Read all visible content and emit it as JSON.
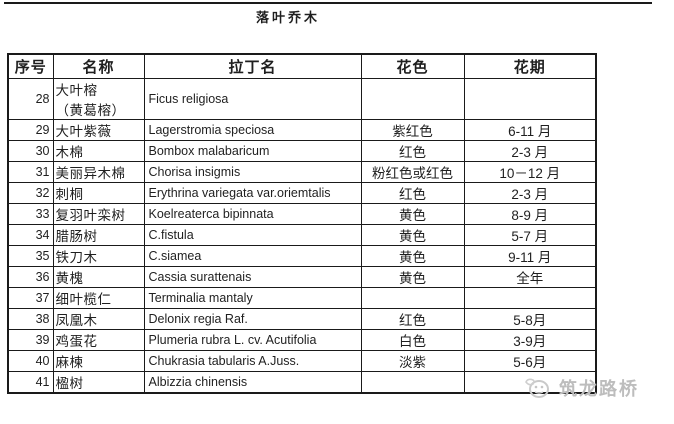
{
  "page": {
    "title": "落叶乔木"
  },
  "table": {
    "headers": [
      "序号",
      "名称",
      "拉丁名",
      "花色",
      "花期"
    ],
    "rows": [
      {
        "no": "28",
        "name": "大叶榕",
        "name2": "（黄葛榕）",
        "latin": "Ficus religiosa",
        "color": "",
        "period": ""
      },
      {
        "no": "29",
        "name": "大叶紫薇",
        "latin": "Lagerstromia speciosa",
        "color": "紫红色",
        "period": "6-11 月"
      },
      {
        "no": "30",
        "name": "木棉",
        "latin": "Bombox malabaricum",
        "color": "红色",
        "period": "2-3 月"
      },
      {
        "no": "31",
        "name": "美丽异木棉",
        "latin": "Chorisa insigmis",
        "color": "粉红色或红色",
        "period": "10－12 月"
      },
      {
        "no": "32",
        "name": "刺桐",
        "latin": "Erythrina variegata var.oriemtalis",
        "color": "红色",
        "period": "2-3 月"
      },
      {
        "no": "33",
        "name": "复羽叶栾树",
        "latin": "Koelreaterca bipinnata",
        "color": "黄色",
        "period": "8-9 月"
      },
      {
        "no": "34",
        "name": "腊肠树",
        "latin": "C.fistula",
        "color": "黄色",
        "period": "5-7 月"
      },
      {
        "no": "35",
        "name": "铁刀木",
        "latin": "C.siamea",
        "color": "黄色",
        "period": "9-11 月"
      },
      {
        "no": "36",
        "name": "黄槐",
        "latin": "Cassia surattenais",
        "color": "黄色",
        "period": "全年"
      },
      {
        "no": "37",
        "name": "细叶榄仁",
        "latin": "Terminalia mantaly",
        "color": "",
        "period": ""
      },
      {
        "no": "38",
        "name": "凤凰木",
        "latin": "Delonix regia Raf.",
        "color": "红色",
        "period": "5-8月"
      },
      {
        "no": "39",
        "name": "鸡蛋花",
        "latin": "Plumeria rubra L. cv. Acutifolia",
        "color": "白色",
        "period": "3-9月"
      },
      {
        "no": "40",
        "name": "麻楝",
        "latin": "Chukrasia tabularis A.Juss.",
        "color": "淡紫",
        "period": "5-6月"
      },
      {
        "no": "41",
        "name": "楹树",
        "latin": "Albizzia chinensis",
        "color": "",
        "period": ""
      }
    ]
  },
  "watermark": {
    "text": "筑龙路桥",
    "logo": "zhulong-mascot-icon"
  },
  "colors": {
    "background": "#ffffff",
    "border": "#1a1a1a",
    "text": "#1f1f1f",
    "watermark": "#bdbdbd"
  }
}
